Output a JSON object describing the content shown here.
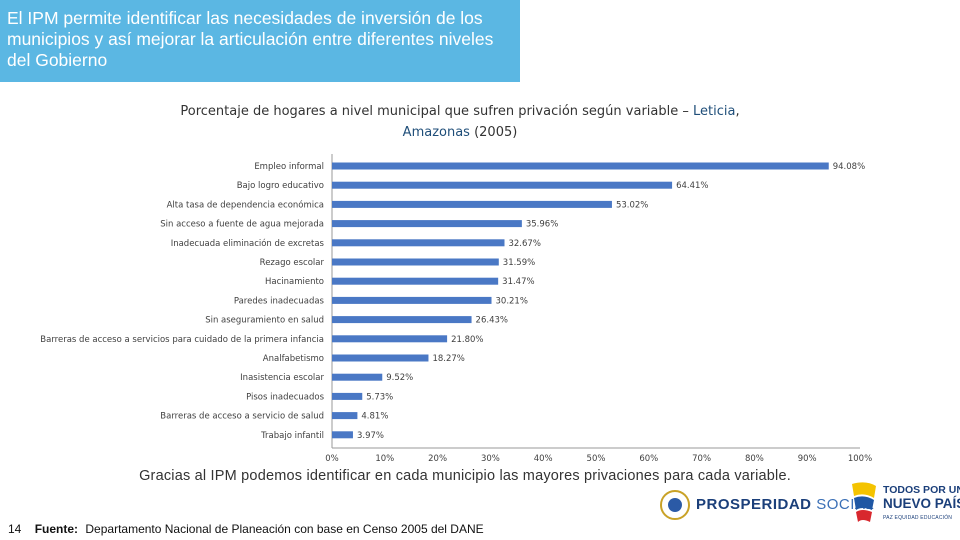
{
  "header": {
    "text": "El IPM permite identificar las necesidades de inversión de los municipios y así mejorar la articulación entre diferentes niveles del Gobierno",
    "background": "#5bb7e3"
  },
  "chart_title": {
    "part1": "Porcentaje de hogares a nivel municipal que sufren privación según variable – ",
    "highlight1": "Leticia",
    "part2": ", ",
    "highlight2": "Amazonas",
    "part3": " (2005)"
  },
  "chart_data": {
    "type": "bar",
    "orientation": "horizontal",
    "categories": [
      "Empleo informal",
      "Bajo logro educativo",
      "Alta tasa de dependencia económica",
      "Sin acceso a fuente de agua mejorada",
      "Inadecuada eliminación de excretas",
      "Rezago escolar",
      "Hacinamiento",
      "Paredes inadecuadas",
      "Sin aseguramiento en salud",
      "Barreras de acceso a servicios para cuidado de la primera infancia",
      "Analfabetismo",
      "Inasistencia escolar",
      "Pisos inadecuados",
      "Barreras de acceso a servicio de salud",
      "Trabajo infantil"
    ],
    "values": [
      94.08,
      64.41,
      53.02,
      35.96,
      32.67,
      31.59,
      31.47,
      30.21,
      26.43,
      21.8,
      18.27,
      9.52,
      5.73,
      4.81,
      3.97
    ],
    "value_labels": [
      "94.08%",
      "64.41%",
      "53.02%",
      "35.96%",
      "32.67%",
      "31.59%",
      "31.47%",
      "30.21%",
      "26.43%",
      "21.80%",
      "18.27%",
      "9.52%",
      "5.73%",
      "4.81%",
      "3.97%"
    ],
    "xlim": [
      0,
      100
    ],
    "x_ticks": [
      "0%",
      "10%",
      "20%",
      "30%",
      "40%",
      "50%",
      "60%",
      "70%",
      "80%",
      "90%",
      "100%"
    ],
    "grid": false,
    "bar_color": "#4a78c5"
  },
  "caption": "Gracias al IPM podemos identificar en cada municipio las mayores privaciones para cada variable.",
  "footer": {
    "page_number": "14",
    "source_label": "Fuente:",
    "source_text": "Departamento Nacional de Planeación con base en Censo 2005 del DANE"
  },
  "logos": {
    "prosperidad_social": {
      "word1": "PROSPERIDAD",
      "word2": "SOCIAL"
    },
    "nuevo_pais": {
      "line1": "TODOS POR UN",
      "line2": "NUEVO PAÍS",
      "line3": "PAZ  EQUIDAD  EDUCACIÓN"
    }
  },
  "colors": {
    "title_highlight": "#1f4e79",
    "logo_blue": "#1b3f7a"
  }
}
